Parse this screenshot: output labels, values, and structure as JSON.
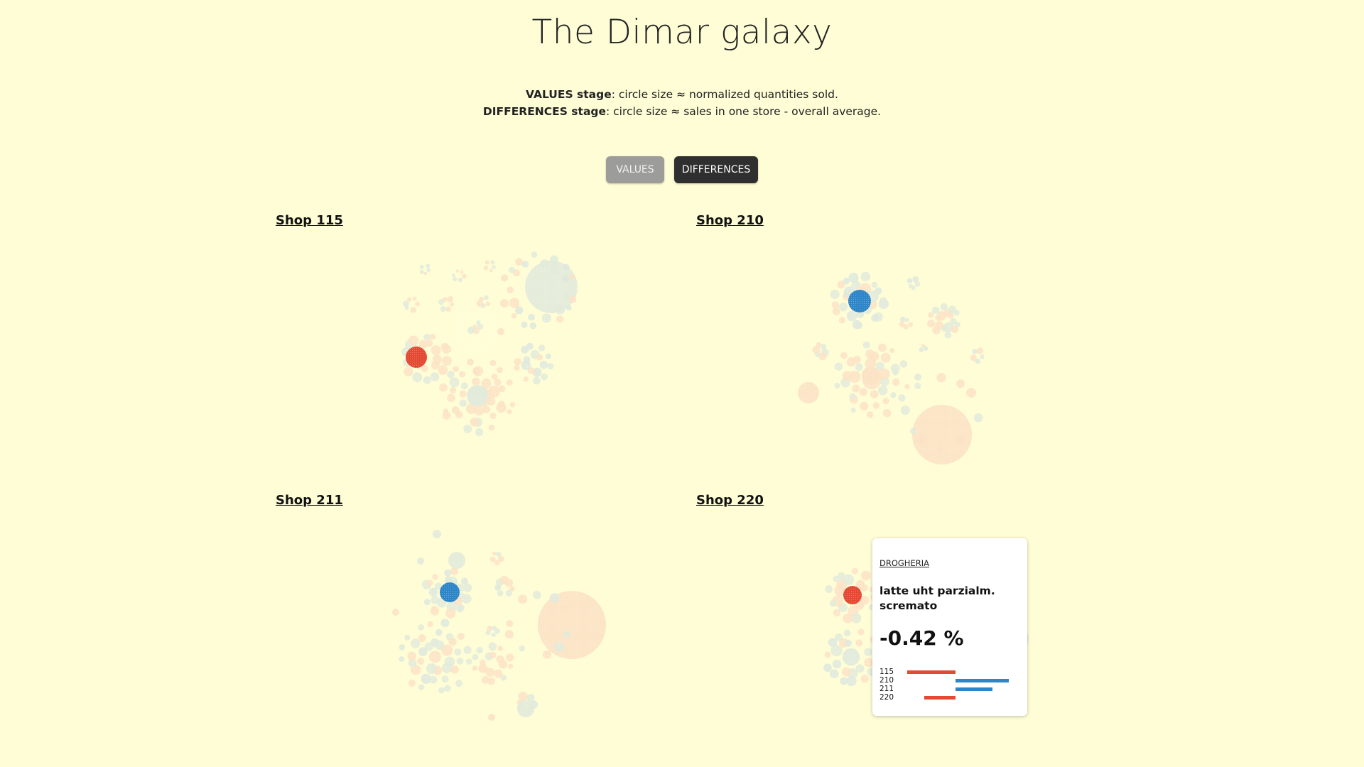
{
  "header": {
    "title": "The Dimar galaxy"
  },
  "description": {
    "values_term": "VALUES stage",
    "values_text": ": circle size ≈ normalized quantities sold.",
    "differences_term": "DIFFERENCES stage",
    "differences_text": ": circle size ≈ sales in one store - overall average."
  },
  "stage_buttons": {
    "values_label": "VALUES",
    "differences_label": "DIFFERENCES",
    "active": "DIFFERENCES"
  },
  "shops": [
    {
      "label": "Shop 115",
      "highlight": "negative"
    },
    {
      "label": "Shop 210",
      "highlight": "positive"
    },
    {
      "label": "Shop 211",
      "highlight": "positive"
    },
    {
      "label": "Shop 220",
      "highlight": "negative"
    }
  ],
  "colors": {
    "background": "#fefdd6",
    "negative": "#e34a33",
    "positive": "#2e86c8",
    "faded_negative": "#fbe2c4",
    "faded_neutral": "#e2ead9",
    "faded_positive": "#dde7dd"
  },
  "tooltip": {
    "category": "DROGHERIA",
    "product": "latte uht parzialm. scremato",
    "value": "-0.42 %",
    "bars": [
      {
        "shop": "115",
        "sign": "negative",
        "magnitude": 0.62
      },
      {
        "shop": "210",
        "sign": "positive",
        "magnitude": 0.68
      },
      {
        "shop": "211",
        "sign": "positive",
        "magnitude": 0.47
      },
      {
        "shop": "220",
        "sign": "negative",
        "magnitude": 0.4
      }
    ]
  }
}
